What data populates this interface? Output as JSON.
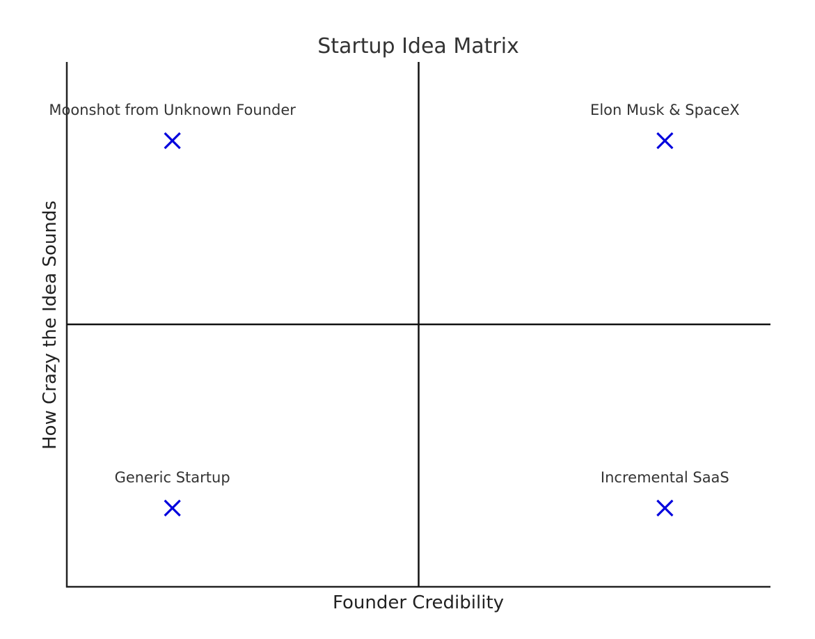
{
  "chart_data": {
    "type": "scatter",
    "title": "Startup Idea Matrix",
    "xlabel": "Founder Credibility",
    "ylabel": "How Crazy the Idea Sounds",
    "xlim": [
      0,
      10
    ],
    "ylim": [
      0,
      10
    ],
    "dividers": {
      "x": 5,
      "y": 5
    },
    "grid": false,
    "legend": "none",
    "marker": "x",
    "marker_color": "#0000dd",
    "points": [
      {
        "label": "Moonshot from Unknown Founder",
        "x": 1.5,
        "y": 8.5
      },
      {
        "label": "Elon Musk & SpaceX",
        "x": 8.5,
        "y": 8.5
      },
      {
        "label": "Generic Startup",
        "x": 1.5,
        "y": 1.5
      },
      {
        "label": "Incremental SaaS",
        "x": 8.5,
        "y": 1.5
      }
    ]
  }
}
